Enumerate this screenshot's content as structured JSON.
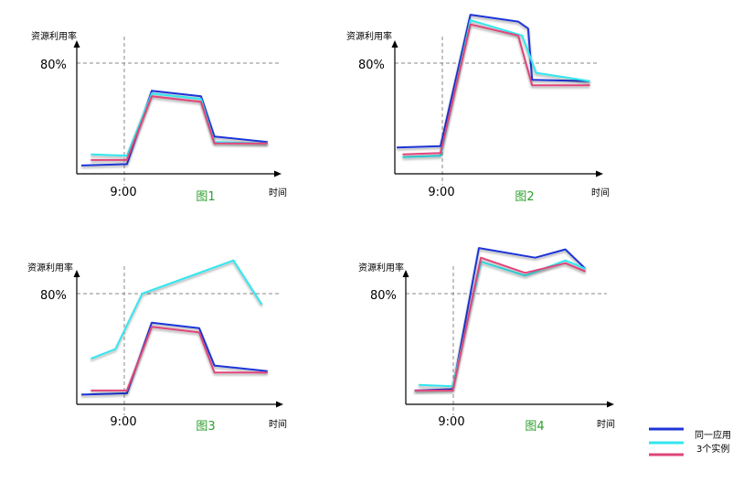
{
  "colors": {
    "same_app": "#1f34d6",
    "three_instances_cyan": "#33e6ef",
    "three_instances_pink": "#e0457a",
    "caption": "#2e9e2e",
    "axis": "#000000",
    "guide": "#888888"
  },
  "legend": {
    "same_app": "同一应用",
    "three_instances": "3个实例"
  },
  "chart_data": [
    {
      "type": "line",
      "caption": "图1",
      "ylabel": "资源利用率",
      "xlabel": "时间",
      "x_tick": "9:00",
      "y_tick": "80%",
      "series": [
        {
          "name": "同一应用",
          "key": "same_app",
          "points": [
            [
              0,
              6
            ],
            [
              0.24,
              7
            ],
            [
              0.37,
              60
            ],
            [
              0.63,
              56
            ],
            [
              0.7,
              27
            ],
            [
              0.98,
              23
            ]
          ]
        },
        {
          "name": "3个实例",
          "key": "three_instances_cyan",
          "points": [
            [
              0.05,
              14
            ],
            [
              0.24,
              13
            ],
            [
              0.37,
              58
            ],
            [
              0.63,
              54
            ],
            [
              0.7,
              23
            ],
            [
              0.98,
              22
            ]
          ]
        },
        {
          "name": "3个实例",
          "key": "three_instances_pink",
          "points": [
            [
              0.05,
              10
            ],
            [
              0.24,
              10
            ],
            [
              0.37,
              56
            ],
            [
              0.63,
              52
            ],
            [
              0.7,
              22
            ],
            [
              0.98,
              22
            ]
          ]
        }
      ]
    },
    {
      "type": "line",
      "caption": "图2",
      "ylabel": "资源利用率",
      "xlabel": "时间",
      "x_tick": "9:00",
      "y_tick": "80%",
      "series": [
        {
          "name": "同一应用",
          "key": "same_app",
          "points": [
            [
              0,
              19
            ],
            [
              0.22,
              20
            ],
            [
              0.37,
              115
            ],
            [
              0.61,
              110
            ],
            [
              0.66,
              105
            ],
            [
              0.68,
              68
            ],
            [
              0.97,
              67
            ]
          ]
        },
        {
          "name": "3个实例",
          "key": "three_instances_cyan",
          "points": [
            [
              0.03,
              12
            ],
            [
              0.22,
              13
            ],
            [
              0.37,
              111
            ],
            [
              0.63,
              100
            ],
            [
              0.7,
              73
            ],
            [
              0.97,
              67
            ]
          ]
        },
        {
          "name": "3个实例",
          "key": "three_instances_pink",
          "points": [
            [
              0.03,
              14
            ],
            [
              0.22,
              15
            ],
            [
              0.37,
              108
            ],
            [
              0.61,
              100
            ],
            [
              0.68,
              64
            ],
            [
              0.97,
              64
            ]
          ]
        }
      ]
    },
    {
      "type": "line",
      "caption": "图3",
      "ylabel": "资源利用率",
      "xlabel": "时间",
      "x_tick": "9:00",
      "y_tick": "80%",
      "series": [
        {
          "name": "同一应用",
          "key": "same_app",
          "points": [
            [
              0,
              7
            ],
            [
              0.24,
              8
            ],
            [
              0.37,
              59
            ],
            [
              0.62,
              55
            ],
            [
              0.7,
              28
            ],
            [
              0.98,
              24
            ]
          ]
        },
        {
          "name": "3个实例",
          "key": "three_instances_cyan",
          "points": [
            [
              0.05,
              33
            ],
            [
              0.18,
              40
            ],
            [
              0.32,
              80
            ],
            [
              0.8,
              104
            ],
            [
              0.95,
              72
            ]
          ]
        },
        {
          "name": "3个实例",
          "key": "three_instances_pink",
          "points": [
            [
              0.05,
              10
            ],
            [
              0.24,
              10
            ],
            [
              0.37,
              56
            ],
            [
              0.62,
              52
            ],
            [
              0.7,
              23
            ],
            [
              0.98,
              23
            ]
          ]
        }
      ]
    },
    {
      "type": "line",
      "caption": "图4",
      "ylabel": "资源利用率",
      "xlabel": "时间",
      "x_tick": "9:00",
      "y_tick": "80%",
      "series": [
        {
          "name": "同一应用",
          "key": "same_app",
          "points": [
            [
              0.03,
              10
            ],
            [
              0.22,
              11
            ],
            [
              0.35,
              113
            ],
            [
              0.63,
              106
            ],
            [
              0.78,
              112
            ],
            [
              0.88,
              98
            ]
          ]
        },
        {
          "name": "3个实例",
          "key": "three_instances_cyan",
          "points": [
            [
              0.05,
              14
            ],
            [
              0.22,
              13
            ],
            [
              0.36,
              103
            ],
            [
              0.58,
              93
            ],
            [
              0.78,
              104
            ],
            [
              0.88,
              98
            ]
          ]
        },
        {
          "name": "3个实例",
          "key": "three_instances_pink",
          "points": [
            [
              0.03,
              10
            ],
            [
              0.22,
              10
            ],
            [
              0.36,
              106
            ],
            [
              0.58,
              95
            ],
            [
              0.78,
              102
            ],
            [
              0.88,
              96
            ]
          ]
        }
      ]
    }
  ]
}
